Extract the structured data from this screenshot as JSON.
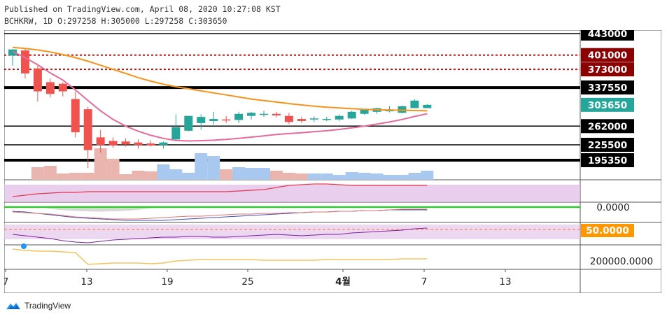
{
  "header": {
    "published_line": "Published on TradingView.com, April 08, 2020 10:27:08 KST",
    "ohlc_line": "BCHKRW, 1D O:297258 H:305000 L:297258 C:303650"
  },
  "branding": {
    "logo_text": "TradingView"
  },
  "colors": {
    "up": "#26a69a",
    "down": "#ef5350",
    "ma_fast": "#e8699a",
    "ma_slow": "#f7931a",
    "resistance": "#b71c1c",
    "support": "#000000",
    "rsi_band": "#e1bee7",
    "last_price_label": "#26a69a",
    "rsi_mid_label": "#ff9800",
    "zero_line": "#00e600"
  },
  "chart_data": {
    "type": "candlestick",
    "symbol": "BCHKRW",
    "interval": "1D",
    "x_axis_labels": [
      "7",
      "13",
      "19",
      "25",
      "4월",
      "7",
      "13"
    ],
    "price_levels": [
      {
        "value": 443000,
        "label": "443000",
        "style": "support"
      },
      {
        "value": 401000,
        "label": "401000",
        "style": "resistance"
      },
      {
        "value": 373000,
        "label": "373000",
        "style": "resistance"
      },
      {
        "value": 337550,
        "label": "337550",
        "style": "support"
      },
      {
        "value": 303650,
        "label": "303650",
        "style": "last"
      },
      {
        "value": 262000,
        "label": "262000",
        "style": "support"
      },
      {
        "value": 225500,
        "label": "225500",
        "style": "support"
      },
      {
        "value": 195350,
        "label": "195350",
        "style": "support"
      }
    ],
    "last_close": 303650,
    "candles": [
      {
        "o": 400000,
        "h": 412000,
        "l": 380000,
        "c": 412000
      },
      {
        "o": 410000,
        "h": 415000,
        "l": 355000,
        "c": 365000
      },
      {
        "o": 375000,
        "h": 380000,
        "l": 310000,
        "c": 330000
      },
      {
        "o": 348000,
        "h": 355000,
        "l": 318000,
        "c": 325000
      },
      {
        "o": 345000,
        "h": 348000,
        "l": 320000,
        "c": 330000
      },
      {
        "o": 315000,
        "h": 330000,
        "l": 240000,
        "c": 250000
      },
      {
        "o": 295000,
        "h": 300000,
        "l": 180000,
        "c": 215000
      },
      {
        "o": 240000,
        "h": 255000,
        "l": 210000,
        "c": 225000
      },
      {
        "o": 233000,
        "h": 240000,
        "l": 220000,
        "c": 224000
      },
      {
        "o": 232000,
        "h": 238000,
        "l": 222000,
        "c": 226000
      },
      {
        "o": 230000,
        "h": 236000,
        "l": 218000,
        "c": 225000
      },
      {
        "o": 228000,
        "h": 234000,
        "l": 222000,
        "c": 224000
      },
      {
        "o": 225000,
        "h": 232000,
        "l": 218000,
        "c": 230000
      },
      {
        "o": 236000,
        "h": 285000,
        "l": 235000,
        "c": 260000
      },
      {
        "o": 253000,
        "h": 282000,
        "l": 252000,
        "c": 282000
      },
      {
        "o": 268000,
        "h": 285000,
        "l": 255000,
        "c": 280000
      },
      {
        "o": 272000,
        "h": 290000,
        "l": 265000,
        "c": 276000
      },
      {
        "o": 275000,
        "h": 282000,
        "l": 268000,
        "c": 273000
      },
      {
        "o": 274000,
        "h": 290000,
        "l": 268000,
        "c": 286000
      },
      {
        "o": 282000,
        "h": 290000,
        "l": 275000,
        "c": 288000
      },
      {
        "o": 284000,
        "h": 292000,
        "l": 280000,
        "c": 286000
      },
      {
        "o": 286000,
        "h": 290000,
        "l": 279000,
        "c": 283000
      },
      {
        "o": 282000,
        "h": 288000,
        "l": 266000,
        "c": 270000
      },
      {
        "o": 276000,
        "h": 280000,
        "l": 268000,
        "c": 272000
      },
      {
        "o": 276000,
        "h": 281000,
        "l": 270000,
        "c": 277000
      },
      {
        "o": 276000,
        "h": 280000,
        "l": 272000,
        "c": 276000
      },
      {
        "o": 275000,
        "h": 285000,
        "l": 272000,
        "c": 282000
      },
      {
        "o": 277000,
        "h": 292000,
        "l": 276000,
        "c": 290000
      },
      {
        "o": 286000,
        "h": 296000,
        "l": 284000,
        "c": 295000
      },
      {
        "o": 290000,
        "h": 298000,
        "l": 286000,
        "c": 297000
      },
      {
        "o": 292000,
        "h": 301000,
        "l": 289000,
        "c": 293000
      },
      {
        "o": 288000,
        "h": 302000,
        "l": 287000,
        "c": 301000
      },
      {
        "o": 297258,
        "h": 315000,
        "l": 297000,
        "c": 312000
      },
      {
        "o": 297258,
        "h": 305000,
        "l": 297258,
        "c": 303650
      }
    ],
    "ma_fast_values": [
      408000,
      396000,
      382000,
      366000,
      352000,
      333000,
      312000,
      292000,
      275000,
      262000,
      252000,
      244000,
      238000,
      234000,
      233000,
      233500,
      234500,
      236000,
      238000,
      240500,
      243000,
      245500,
      247500,
      249000,
      251000,
      253000,
      255500,
      258500,
      262000,
      266000,
      270000,
      275000,
      281000,
      286000
    ],
    "ma_slow_values": [
      416000,
      414000,
      411000,
      407000,
      402000,
      396000,
      389000,
      381000,
      373000,
      365000,
      357000,
      350000,
      344000,
      339000,
      335000,
      331000,
      327000,
      323000,
      319000,
      315000,
      312000,
      309000,
      306000,
      303500,
      301000,
      299000,
      297500,
      296000,
      295000,
      294000,
      293500,
      293000,
      292500,
      292000
    ],
    "volume_values": [
      0,
      0,
      18,
      20,
      9,
      10,
      10,
      45,
      30,
      8,
      13,
      12,
      22,
      15,
      10,
      38,
      34,
      15,
      18,
      17,
      17,
      13,
      10,
      9,
      9,
      9,
      7,
      11,
      10,
      9,
      7,
      7,
      10,
      13
    ],
    "rsi_band_label": "50.0000",
    "macd_zero_label": "0.0000",
    "bottom_indicator_label": "200000.0000"
  }
}
